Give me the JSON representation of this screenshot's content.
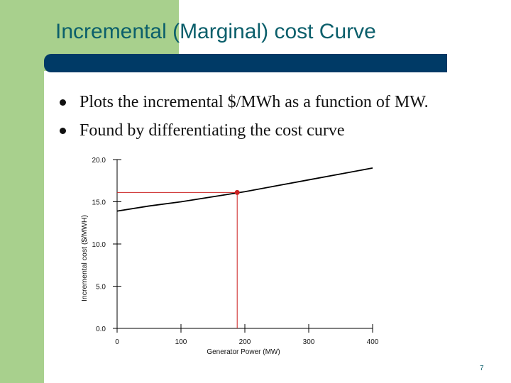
{
  "slide": {
    "title": "Incremental (Marginal) cost Curve",
    "bullets": [
      "Plots the incremental $/MWh as a function of MW.",
      "Found by differentiating the cost curve"
    ],
    "page_number": "7"
  },
  "colors": {
    "accent_green": "#a8d08d",
    "title_color": "#0b5f6b",
    "rule_color": "#003a66",
    "curve_color": "#000000",
    "marker_color": "#cc2222"
  },
  "chart_data": {
    "type": "line",
    "title": "",
    "xlabel": "Generator Power (MW)",
    "ylabel": "Incremental cost ($/MWH)",
    "xlim": [
      0,
      400
    ],
    "ylim": [
      0,
      20
    ],
    "xticks": [
      "0",
      "100",
      "200",
      "300",
      "400"
    ],
    "yticks": [
      "0.0",
      "5.0",
      "10.0",
      "15.0",
      "20.0"
    ],
    "grid": false,
    "series": [
      {
        "x": [
          0,
          50,
          100,
          150,
          200,
          250,
          300,
          350,
          400
        ],
        "y": [
          13.9,
          14.5,
          15.0,
          15.6,
          16.2,
          16.9,
          17.6,
          18.3,
          19.0
        ]
      }
    ],
    "highlight_point": {
      "x": 188,
      "y": 16.1
    }
  }
}
